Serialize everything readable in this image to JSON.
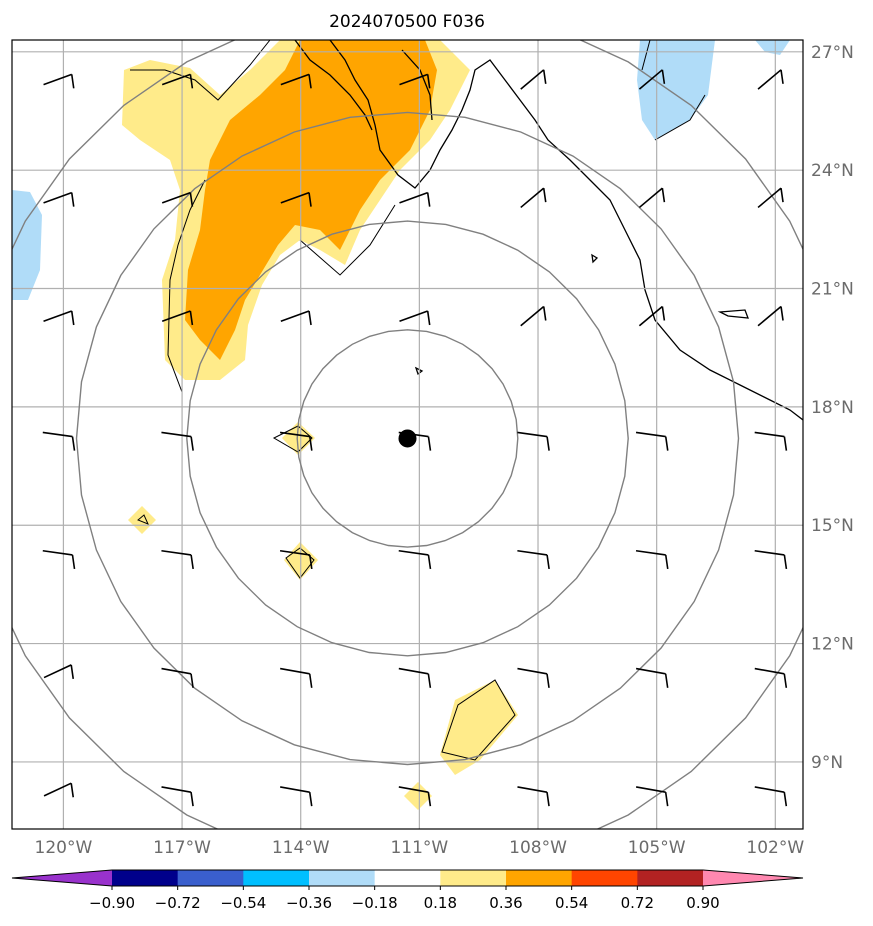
{
  "title": "2024070500 F036",
  "map": {
    "lon_range": [
      -121.3,
      -101.3
    ],
    "lat_range": [
      7.3,
      27.3
    ],
    "storm_center": {
      "lon": -111.3,
      "lat": 17.2
    },
    "lat_ticks": [
      {
        "value": 27,
        "label": "27°N"
      },
      {
        "value": 24,
        "label": "24°N"
      },
      {
        "value": 21,
        "label": "21°N"
      },
      {
        "value": 18,
        "label": "18°N"
      },
      {
        "value": 15,
        "label": "15°N"
      },
      {
        "value": 12,
        "label": "12°N"
      },
      {
        "value": 9,
        "label": "9°N"
      }
    ],
    "lon_ticks": [
      {
        "value": -120,
        "label": "120°W"
      },
      {
        "value": -117,
        "label": "117°W"
      },
      {
        "value": -114,
        "label": "114°W"
      },
      {
        "value": -111,
        "label": "111°W"
      },
      {
        "value": -108,
        "label": "108°W"
      },
      {
        "value": -105,
        "label": "105°W"
      },
      {
        "value": -102,
        "label": "102°W"
      }
    ],
    "range_ring_count": 4,
    "grid": true,
    "colors": {
      "ring": "#808080",
      "grid": "#b0b0b0",
      "coast": "#000000",
      "light_orange": "#ffeb8a",
      "orange": "#ffa500",
      "light_blue": "#b0dcf8"
    }
  },
  "colorbar": {
    "orientation": "horizontal",
    "extend": "both",
    "tick_labels": [
      "−0.90",
      "−0.72",
      "−0.54",
      "−0.36",
      "−0.18",
      "0.18",
      "0.36",
      "0.54",
      "0.72",
      "0.90"
    ],
    "colors": [
      "#9932cc",
      "#00008b",
      "#3a5fcd",
      "#00bfff",
      "#b0dcf8",
      "#ffffff",
      "#ffeb8a",
      "#ffa500",
      "#ff4500",
      "#b22222",
      "#ff88b0"
    ]
  }
}
